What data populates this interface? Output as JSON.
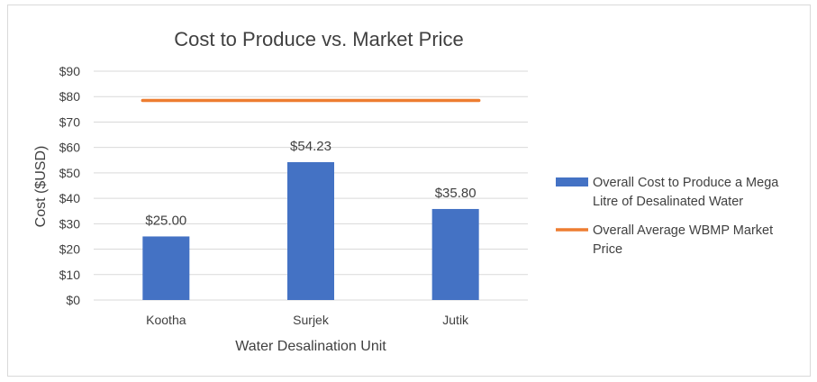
{
  "chart_data": {
    "type": "bar",
    "title": "Cost to Produce vs. Market Price",
    "xlabel": "Water Desalination Unit",
    "ylabel": "Cost ($USD)",
    "categories": [
      "Kootha",
      "Surjek",
      "Jutik"
    ],
    "ylim": [
      0,
      90
    ],
    "yticks": [
      0,
      10,
      20,
      30,
      40,
      50,
      60,
      70,
      80,
      90
    ],
    "ytick_labels": [
      "$0",
      "$10",
      "$20",
      "$30",
      "$40",
      "$50",
      "$60",
      "$70",
      "$80",
      "$90"
    ],
    "grid": true,
    "legend_position": "right",
    "series": [
      {
        "name": "Overall Cost to Produce a Mega Litre of Desalinated Water",
        "legend_lines": [
          "Overall Cost to Produce a Mega",
          "Litre of Desalinated Water"
        ],
        "type": "bar",
        "color": "#4472c4",
        "values": [
          25.0,
          54.23,
          35.8
        ],
        "data_labels": [
          "$25.00",
          "$54.23",
          "$35.80"
        ]
      },
      {
        "name": "Overall Average WBMP Market Price",
        "legend_lines": [
          "Overall Average WBMP Market",
          "Price"
        ],
        "type": "line",
        "color": "#ed7d31",
        "values": [
          78.5,
          78.5,
          78.5
        ]
      }
    ]
  }
}
